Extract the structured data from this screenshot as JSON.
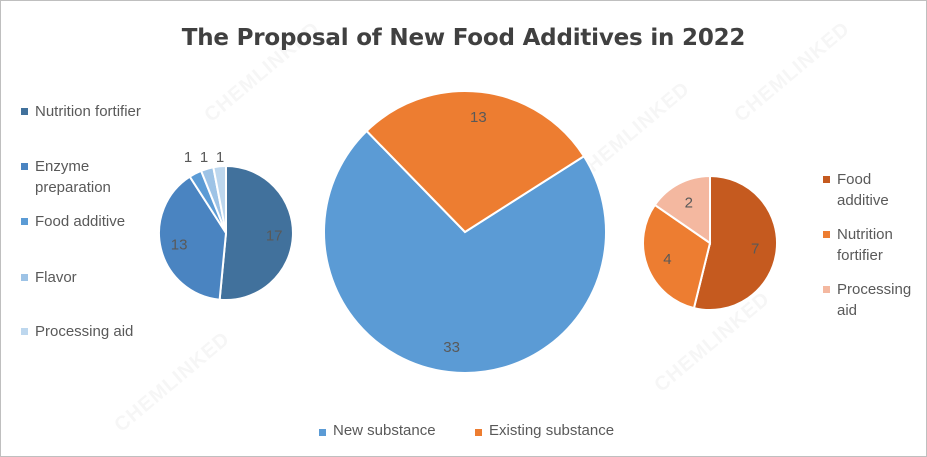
{
  "title": "The Proposal of New Food Additives in 2022",
  "watermark": "CHEMLINKED",
  "chart_data": [
    {
      "type": "pie",
      "name": "main",
      "categories": [
        "New substance",
        "Existing substance"
      ],
      "values": [
        33,
        13
      ],
      "colors": [
        "#5b9bd5",
        "#ed7d31"
      ]
    },
    {
      "type": "pie",
      "name": "new-substance-breakdown",
      "categories": [
        "Nutrition fortifier",
        "Enzyme preparation",
        "Food additive",
        "Flavor",
        "Processing aid"
      ],
      "values": [
        17,
        13,
        1,
        1,
        1
      ],
      "colors": [
        "#41719c",
        "#4a84c1",
        "#5b9bd5",
        "#9dc3e6",
        "#bdd7ee"
      ]
    },
    {
      "type": "pie",
      "name": "existing-substance-breakdown",
      "categories": [
        "Food additive",
        "Nutrition fortifier",
        "Processing aid"
      ],
      "values": [
        7,
        4,
        2
      ],
      "colors": [
        "#c55a1f",
        "#ed7d31",
        "#f4b8a0"
      ]
    }
  ],
  "legend_left": [
    "Nutrition fortifier",
    "Enzyme preparation",
    "Food additive",
    "Flavor",
    "Processing aid"
  ],
  "legend_right": [
    "Food additive",
    "Nutrition fortifier",
    "Processing aid"
  ],
  "legend_bottom": [
    "New substance",
    "Existing substance"
  ]
}
